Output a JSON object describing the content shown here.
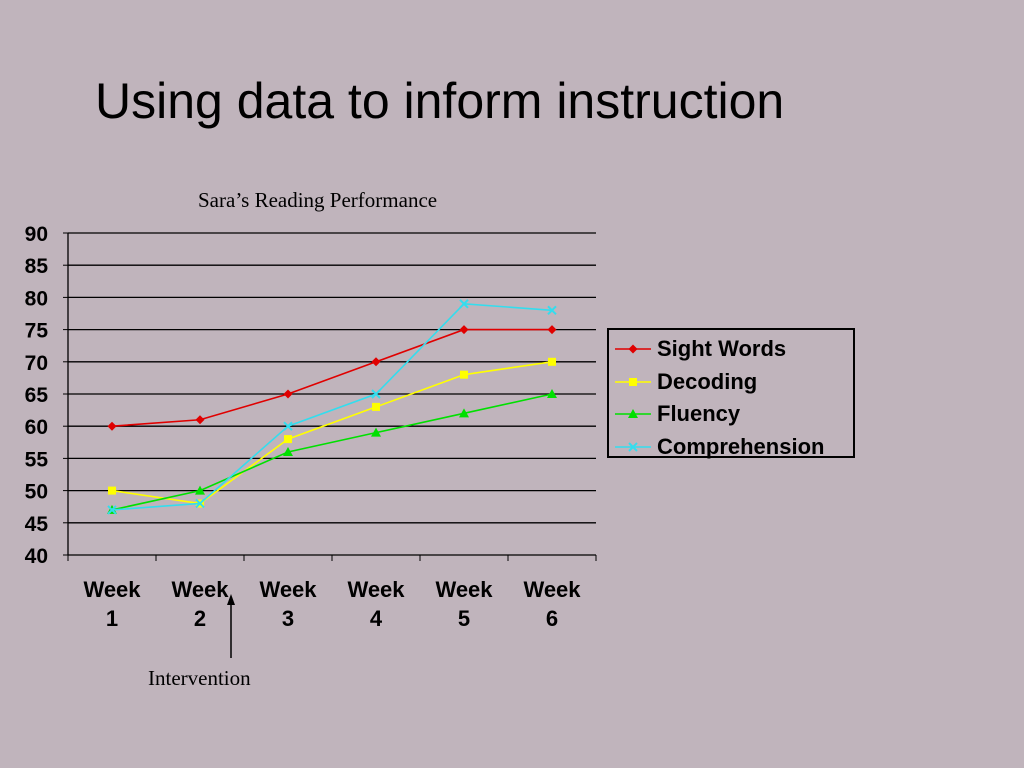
{
  "slide": {
    "title": "Using data to inform instruction"
  },
  "chart_data": {
    "type": "line",
    "title": "Sara’s Reading Performance",
    "categories": [
      [
        "Week",
        "1"
      ],
      [
        "Week",
        "2"
      ],
      [
        "Week",
        "3"
      ],
      [
        "Week",
        "4"
      ],
      [
        "Week",
        "5"
      ],
      [
        "Week",
        "6"
      ]
    ],
    "ylim": [
      40,
      90
    ],
    "yticks": [
      40,
      45,
      50,
      55,
      60,
      65,
      70,
      75,
      80,
      85,
      90
    ],
    "grid": true,
    "legend_position": "right",
    "series": [
      {
        "name": "Sight Words",
        "color": "#e00000",
        "marker": "diamond",
        "values": [
          60,
          61,
          65,
          70,
          75,
          75
        ]
      },
      {
        "name": "Decoding",
        "color": "#ffff00",
        "marker": "square",
        "values": [
          50,
          48,
          58,
          63,
          68,
          70
        ]
      },
      {
        "name": "Fluency",
        "color": "#00e000",
        "marker": "triangle",
        "values": [
          47,
          50,
          56,
          59,
          62,
          65
        ]
      },
      {
        "name": "Comprehension",
        "color": "#33ddee",
        "marker": "x",
        "values": [
          47,
          48,
          60,
          65,
          79,
          78
        ]
      }
    ],
    "annotations": [
      {
        "label": "Intervention",
        "between": [
          "Week 2",
          "Week 3"
        ]
      }
    ]
  }
}
